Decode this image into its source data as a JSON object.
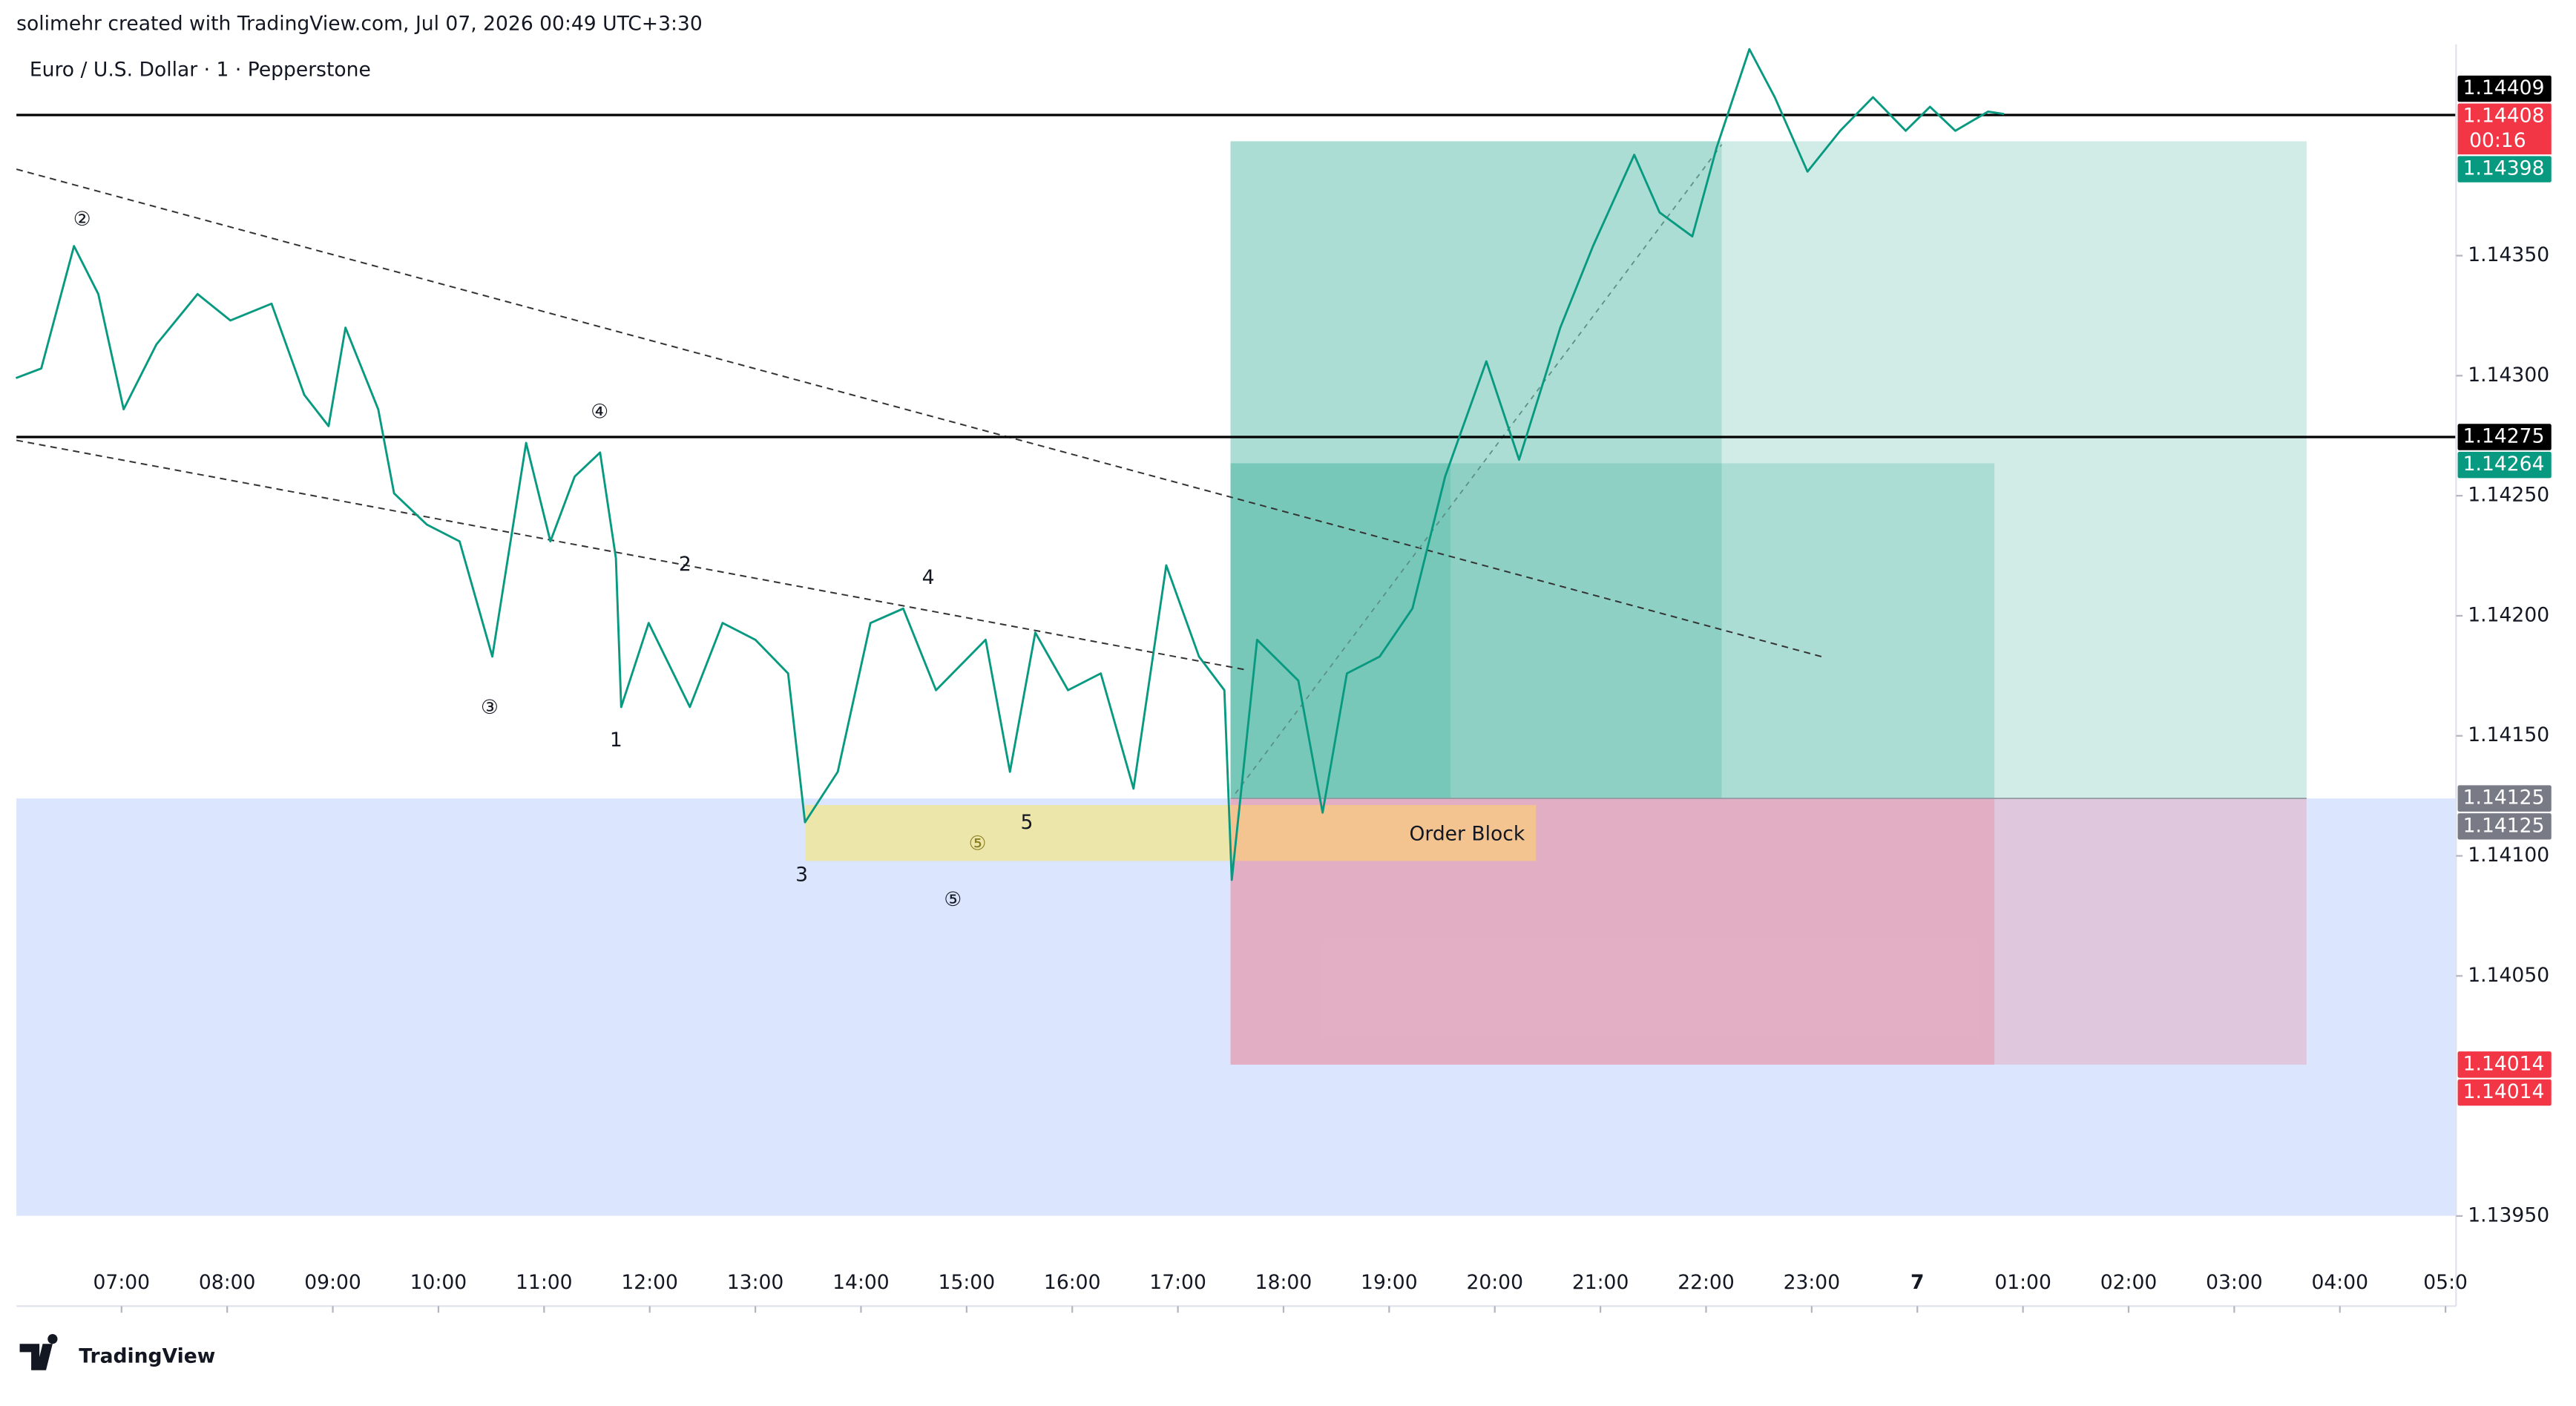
{
  "header": "solimehr created with TradingView.com, Jul 07, 2026 00:49 UTC+3:30",
  "symbol": "Euro / U.S. Dollar · 1 · Pepperstone",
  "brand": "TradingView",
  "countdown": "00:16",
  "order_block": "Order Block",
  "price_labels": [
    "1.14409",
    "1.14408",
    "1.14398",
    "1.14275",
    "1.14264",
    "1.14125",
    "1.14125",
    "1.14014",
    "1.14014"
  ],
  "wave_labels": [
    "②",
    "③",
    "④",
    "1",
    "2",
    "3",
    "4",
    "5",
    "⑤",
    "⑤"
  ],
  "chart_data": {
    "type": "line",
    "color": "#089981",
    "xlim": [
      6.005,
      29.1
    ],
    "ylim": [
      1.13933,
      1.14438
    ],
    "xticks": [
      {
        "value": 7,
        "label": "07:00"
      },
      {
        "value": 8,
        "label": "08:00"
      },
      {
        "value": 9,
        "label": "09:00"
      },
      {
        "value": 10,
        "label": "10:00"
      },
      {
        "value": 11,
        "label": "11:00"
      },
      {
        "value": 12,
        "label": "12:00"
      },
      {
        "value": 13,
        "label": "13:00"
      },
      {
        "value": 14,
        "label": "14:00"
      },
      {
        "value": 15,
        "label": "15:00"
      },
      {
        "value": 16,
        "label": "16:00"
      },
      {
        "value": 17,
        "label": "17:00"
      },
      {
        "value": 18,
        "label": "18:00"
      },
      {
        "value": 19,
        "label": "19:00"
      },
      {
        "value": 20,
        "label": "20:00"
      },
      {
        "value": 21,
        "label": "21:00"
      },
      {
        "value": 22,
        "label": "22:00"
      },
      {
        "value": 23,
        "label": "23:00"
      },
      {
        "value": 24,
        "label": "7"
      },
      {
        "value": 25,
        "label": "01:00"
      },
      {
        "value": 26,
        "label": "02:00"
      },
      {
        "value": 27,
        "label": "03:00"
      },
      {
        "value": 28,
        "label": "04:00"
      },
      {
        "value": 29,
        "label": "05:0"
      }
    ],
    "yticks": [
      {
        "value": 1.1435,
        "label": "1.14350"
      },
      {
        "value": 1.143,
        "label": "1.14300"
      },
      {
        "value": 1.1425,
        "label": "1.14250"
      },
      {
        "value": 1.142,
        "label": "1.14200"
      },
      {
        "value": 1.1415,
        "label": "1.14150"
      },
      {
        "value": 1.141,
        "label": "1.14100"
      },
      {
        "value": 1.1405,
        "label": "1.14050"
      },
      {
        "value": 1.1395,
        "label": "1.13950"
      }
    ],
    "x": [
      6.0,
      6.24,
      6.55,
      6.78,
      7.02,
      7.33,
      7.72,
      8.03,
      8.42,
      8.73,
      8.96,
      9.12,
      9.43,
      9.58,
      9.89,
      10.2,
      10.51,
      10.83,
      11.06,
      11.29,
      11.53,
      11.68,
      11.73,
      11.99,
      12.38,
      12.69,
      13.0,
      13.31,
      13.47,
      13.78,
      14.09,
      14.4,
      14.71,
      15.18,
      15.41,
      15.65,
      15.96,
      16.27,
      16.58,
      16.89,
      17.2,
      17.44,
      17.51,
      17.75,
      18.14,
      18.37,
      18.6,
      18.91,
      19.22,
      19.53,
      19.92,
      20.23,
      20.62,
      20.93,
      21.32,
      21.56,
      21.87,
      22.1,
      22.41,
      22.65,
      22.96,
      23.27,
      23.58,
      23.89,
      24.12,
      24.36,
      24.67,
      24.82
    ],
    "values": [
      1.14299,
      1.14303,
      1.14354,
      1.14334,
      1.14286,
      1.14313,
      1.14334,
      1.14323,
      1.1433,
      1.14292,
      1.14279,
      1.1432,
      1.14286,
      1.14251,
      1.14238,
      1.14231,
      1.14183,
      1.14272,
      1.14231,
      1.14258,
      1.14268,
      1.14224,
      1.14162,
      1.14197,
      1.14162,
      1.14197,
      1.1419,
      1.14176,
      1.14114,
      1.14135,
      1.14197,
      1.14203,
      1.14169,
      1.1419,
      1.14135,
      1.14193,
      1.14169,
      1.14176,
      1.14128,
      1.14221,
      1.14183,
      1.14169,
      1.1409,
      1.1419,
      1.14173,
      1.14118,
      1.14176,
      1.14183,
      1.14203,
      1.14258,
      1.14306,
      1.14265,
      1.1432,
      1.14354,
      1.14392,
      1.14368,
      1.14358,
      1.14395,
      1.14436,
      1.14416,
      1.14385,
      1.14402,
      1.14416,
      1.14402,
      1.14412,
      1.14402,
      1.1441,
      1.14409
    ]
  }
}
